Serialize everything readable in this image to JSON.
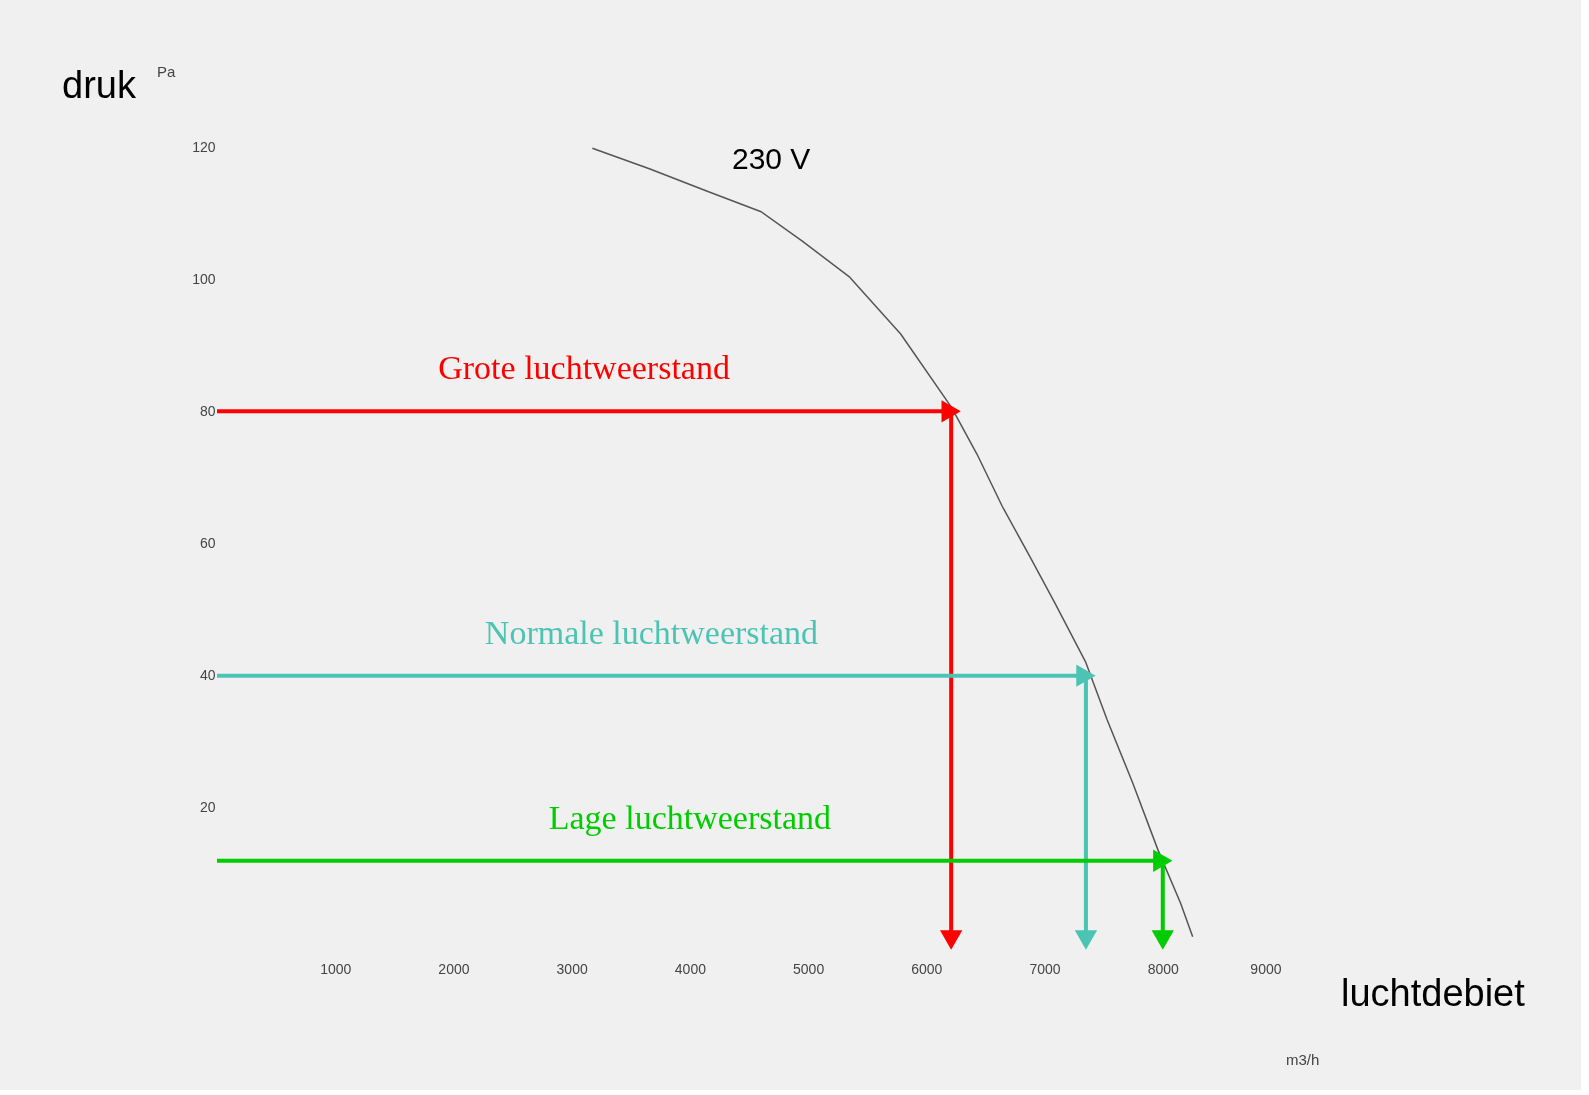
{
  "chart_data": {
    "type": "line",
    "xlabel": "m3/h",
    "ylabel": "Pa",
    "xlim": [
      0,
      9000
    ],
    "xticks": [
      1000,
      2000,
      3000,
      4000,
      5000,
      6000,
      7000,
      8000,
      9000
    ],
    "ylim": [
      0,
      120
    ],
    "yticks": [
      20,
      40,
      60,
      80,
      100,
      120
    ],
    "grid": false,
    "legend": false,
    "annotations": [
      "druk",
      "luchtdebiet"
    ],
    "series": [
      {
        "name": "230 V",
        "color": "#555555",
        "marker": "none",
        "x": [
          3175,
          3657,
          4147,
          4603,
          4948,
          5352,
          5783,
          6213,
          6429,
          6643,
          6876,
          7090,
          7349,
          7530,
          7745,
          7960,
          8150,
          8253
        ],
        "values": [
          119.8,
          116.7,
          113.3,
          110.2,
          105.8,
          100.3,
          91.7,
          80.6,
          73.5,
          65.6,
          58.0,
          50.9,
          42.0,
          33.3,
          23.8,
          13.6,
          5.6,
          0.5
        ]
      },
      {
        "name": "Grote luchtweerstand",
        "color": "#ff0000",
        "marker": "triangle",
        "x": [
          0,
          6210,
          6210
        ],
        "values": [
          80,
          80,
          0
        ]
      },
      {
        "name": "Normale luchtweerstand",
        "color": "#4cc4b4",
        "marker": "triangle",
        "x": [
          0,
          7350,
          7350
        ],
        "values": [
          40,
          40,
          0
        ]
      },
      {
        "name": "Lage luchtweerstand",
        "color": "#00cc00",
        "marker": "triangle",
        "x": [
          0,
          8000,
          8000
        ],
        "values": [
          12,
          12,
          0
        ]
      }
    ]
  }
}
